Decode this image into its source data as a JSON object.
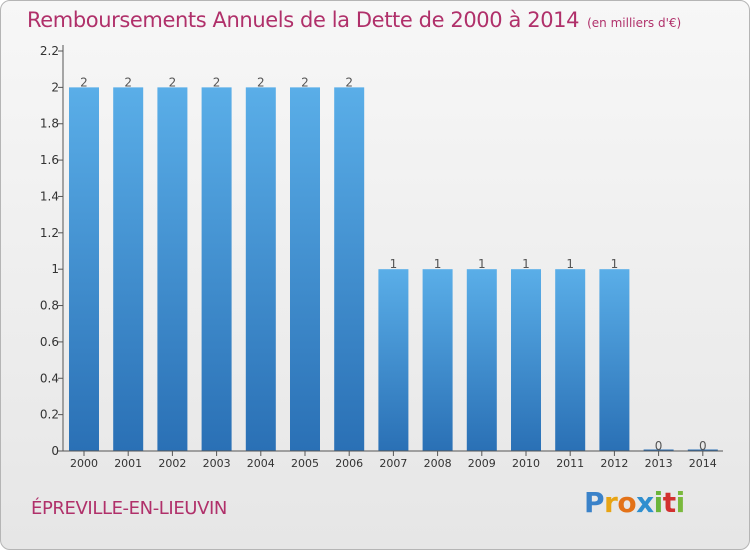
{
  "header": {
    "title": "Remboursements Annuels de la Dette de 2000 à 2014",
    "unit": "(en milliers d'€)"
  },
  "footer": {
    "place": "ÉPREVILLE-EN-LIEUVIN",
    "logo_letters": [
      "P",
      "r",
      "o",
      "x",
      "i",
      "t",
      "i"
    ]
  },
  "colors": {
    "title": "#b0306a",
    "bar_top": "#5aaee8",
    "bar_bottom": "#2a70b5"
  },
  "chart_data": {
    "type": "bar",
    "categories": [
      "2000",
      "2001",
      "2002",
      "2003",
      "2004",
      "2005",
      "2006",
      "2007",
      "2008",
      "2009",
      "2010",
      "2011",
      "2012",
      "2013",
      "2014"
    ],
    "values": [
      2,
      2,
      2,
      2,
      2,
      2,
      2,
      1,
      1,
      1,
      1,
      1,
      1,
      0,
      0
    ],
    "data_labels": [
      "2",
      "2",
      "2",
      "2",
      "2",
      "2",
      "2",
      "1",
      "1",
      "1",
      "1",
      "1",
      "1",
      "0",
      "0"
    ],
    "yticks": [
      "0",
      "0.2",
      "0.4",
      "0.6",
      "0.8",
      "1",
      "1.2",
      "1.4",
      "1.6",
      "1.8",
      "2",
      "2.2"
    ],
    "ylim": [
      0,
      2.2
    ],
    "grid": false,
    "xlabel": "",
    "ylabel": ""
  }
}
